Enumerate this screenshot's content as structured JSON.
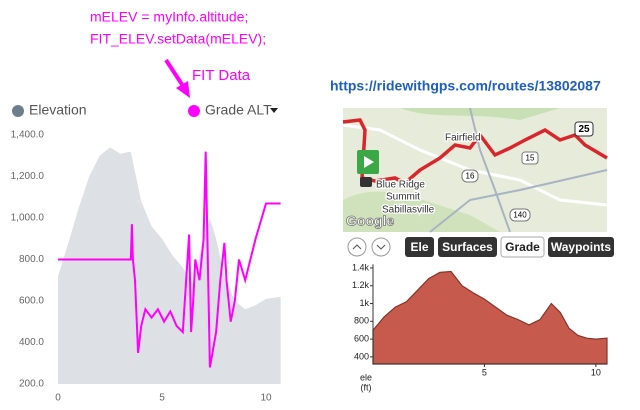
{
  "annotations": {
    "code_lines": [
      "mELEV = myInfo.altitude;",
      "FIT_ELEV.setData(mELEV);"
    ],
    "arrow_label": "FIT Data"
  },
  "link": "https://ridewithgps.com/routes/13802087",
  "map": {
    "places": [
      "Fairfield",
      "Blue Ridge",
      "Summit",
      "Sabillasville"
    ],
    "brand": "Google",
    "route_shields": [
      "25",
      "16",
      "15",
      "140"
    ]
  },
  "controls": {
    "buttons": [
      "Ele",
      "Surfaces",
      "Grade",
      "Waypoints"
    ]
  },
  "chart_data": [
    {
      "type": "line",
      "series": [
        {
          "name": "Elevation",
          "color": "#dde1e5",
          "marker_color": "#6e7d8c",
          "fill": true,
          "x": [
            0,
            0.5,
            1,
            1.5,
            2,
            2.5,
            3,
            3.5,
            4,
            4.5,
            5,
            5.5,
            6,
            6.5,
            7,
            7.3,
            7.6,
            8,
            8.5,
            9,
            9.5,
            10,
            10.7
          ],
          "values": [
            720,
            880,
            1050,
            1200,
            1300,
            1340,
            1310,
            1320,
            1080,
            960,
            900,
            820,
            760,
            680,
            900,
            1000,
            900,
            720,
            600,
            560,
            580,
            610,
            620
          ]
        },
        {
          "name": "Grade ALT",
          "color": "#ff00ff",
          "marker_color": "#ff00ff",
          "fill": false,
          "x": [
            0,
            3.5,
            3.55,
            3.6,
            3.7,
            3.85,
            4.0,
            4.2,
            4.5,
            4.8,
            5.1,
            5.4,
            5.7,
            6.0,
            6.3,
            6.4,
            6.5,
            6.6,
            6.8,
            7.0,
            7.1,
            7.3,
            7.6,
            7.8,
            8.0,
            8.1,
            8.3,
            8.5,
            8.7,
            9.0,
            9.5,
            10.0,
            10.7
          ],
          "values": [
            800,
            800,
            970,
            800,
            700,
            350,
            480,
            560,
            520,
            560,
            500,
            550,
            480,
            450,
            920,
            450,
            600,
            800,
            700,
            900,
            1320,
            280,
            450,
            700,
            880,
            700,
            500,
            600,
            800,
            700,
            900,
            1070,
            1070
          ]
        }
      ],
      "xlim": [
        0,
        10.7
      ],
      "xticks": [
        0,
        5,
        10
      ],
      "ylim": [
        200,
        1450
      ],
      "yticks": [
        {
          "value": 200,
          "label": "200.0"
        },
        {
          "value": 400,
          "label": "400.0"
        },
        {
          "value": 600,
          "label": "600.0"
        },
        {
          "value": 800,
          "label": "800.0"
        },
        {
          "value": 1000,
          "label": "1,000.0"
        },
        {
          "value": 1200,
          "label": "1,200.0"
        },
        {
          "value": 1400,
          "label": "1,400.0"
        }
      ],
      "legend": true
    },
    {
      "type": "area",
      "y_label": "ele",
      "y_unit": "(ft)",
      "series": [
        {
          "color": "#c65a4c",
          "line_color": "#8b3328",
          "fill": true,
          "x": [
            0,
            0.5,
            1,
            1.5,
            2,
            2.5,
            3,
            3.5,
            4,
            4.5,
            5,
            5.5,
            6,
            6.5,
            7,
            7.5,
            8,
            8.4,
            8.8,
            9.2,
            9.6,
            10,
            10.5
          ],
          "values": [
            700,
            850,
            960,
            1020,
            1150,
            1280,
            1350,
            1360,
            1200,
            1120,
            1050,
            960,
            870,
            820,
            760,
            820,
            1000,
            900,
            720,
            640,
            610,
            600,
            610
          ]
        }
      ],
      "xlim": [
        0,
        10.5
      ],
      "xticks": [
        5,
        10
      ],
      "ylim": [
        320,
        1440
      ],
      "yticks": [
        400,
        600,
        800,
        {
          "value": 1000,
          "label": "1k"
        },
        {
          "value": 1200,
          "label": "1.2k"
        },
        {
          "value": 1400,
          "label": "1.4k"
        }
      ],
      "legend": false
    }
  ]
}
